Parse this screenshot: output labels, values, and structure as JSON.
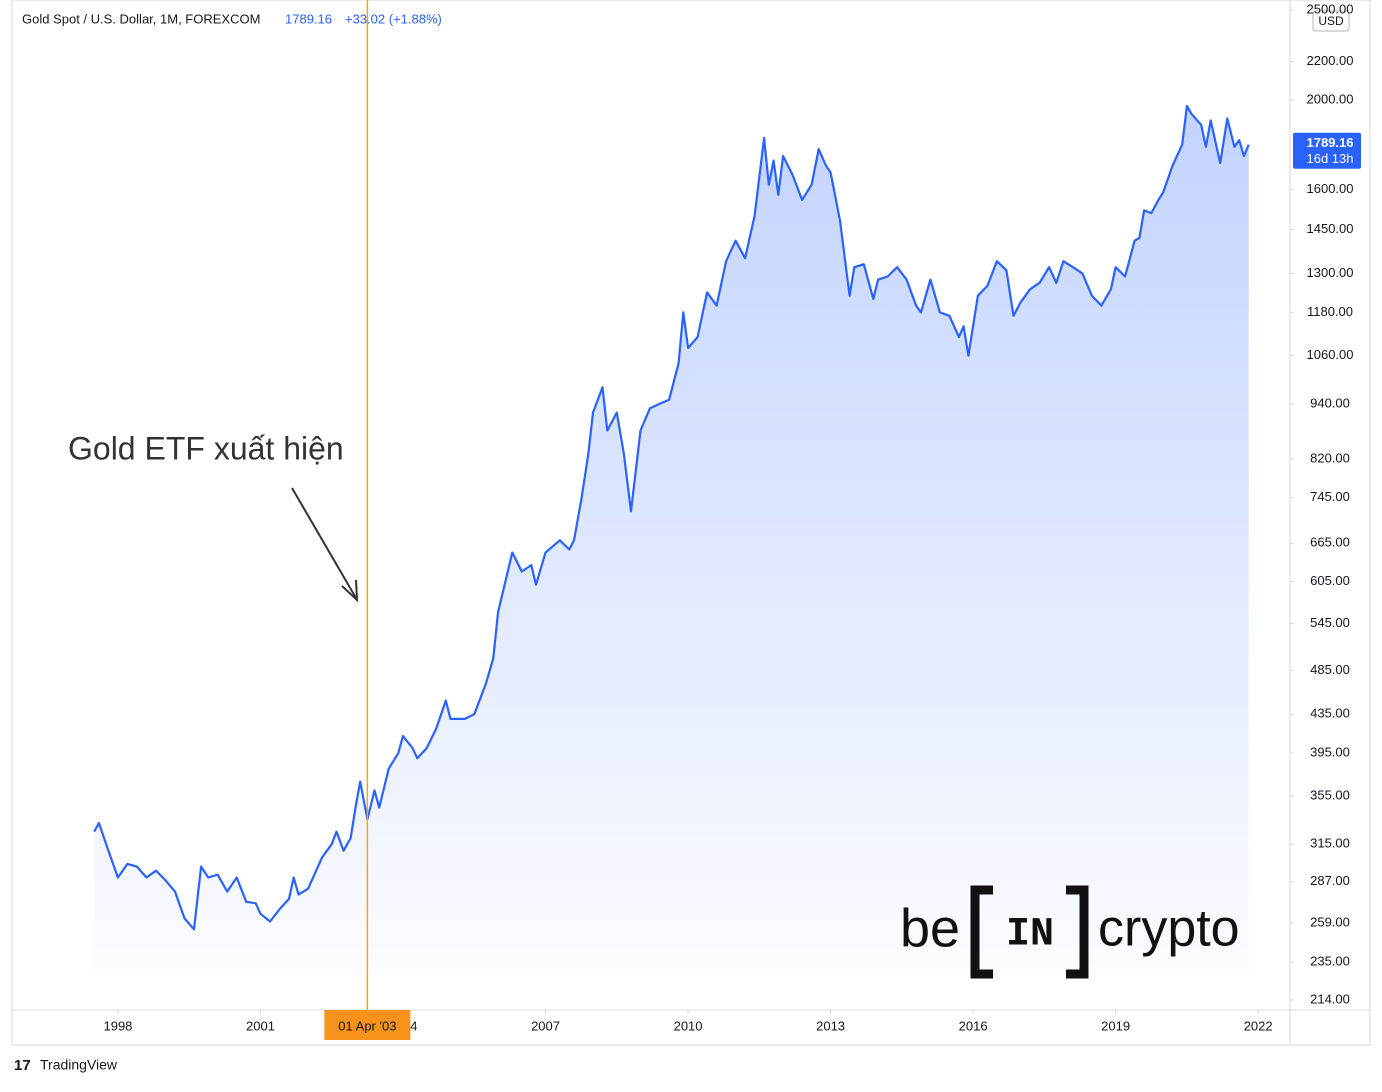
{
  "header": {
    "symbol": "Gold Spot / U.S. Dollar, 1M, FOREXCOM",
    "last": "1789.16",
    "change": "+33.02 (+1.88%)"
  },
  "currency": "USD",
  "footer": "TradingView",
  "logo": {
    "left": "be",
    "middle": "IN",
    "right": "crypto"
  },
  "chart_data": {
    "type": "area",
    "annotation": "Gold ETF xuất hiện",
    "crosshair": {
      "x": 2003.25,
      "label": "01 Apr '03"
    },
    "last_price": {
      "value": 1789.16,
      "label": "1789.16",
      "countdown": "16d 13h"
    },
    "log_scale": true,
    "xlim": [
      1995.77,
      2022.67
    ],
    "xticks": [
      1998,
      2001,
      2004,
      2007,
      2010,
      2013,
      2016,
      2019,
      2022
    ],
    "ylim": [
      208.7,
      2563
    ],
    "yticks": [
      {
        "value": 214,
        "label": "214.00"
      },
      {
        "value": 235,
        "label": "235.00"
      },
      {
        "value": 259,
        "label": "259.00"
      },
      {
        "value": 287,
        "label": "287.00"
      },
      {
        "value": 315,
        "label": "315.00"
      },
      {
        "value": 355,
        "label": "355.00"
      },
      {
        "value": 395,
        "label": "395.00"
      },
      {
        "value": 435,
        "label": "435.00"
      },
      {
        "value": 485,
        "label": "485.00"
      },
      {
        "value": 545,
        "label": "545.00"
      },
      {
        "value": 605,
        "label": "605.00"
      },
      {
        "value": 665,
        "label": "665.00"
      },
      {
        "value": 745,
        "label": "745.00"
      },
      {
        "value": 820,
        "label": "820.00"
      },
      {
        "value": 940,
        "label": "940.00"
      },
      {
        "value": 1060,
        "label": "1060.00"
      },
      {
        "value": 1180,
        "label": "1180.00"
      },
      {
        "value": 1300,
        "label": "1300.00"
      },
      {
        "value": 1450,
        "label": "1450.00"
      },
      {
        "value": 1600,
        "label": "1600.00"
      },
      {
        "value": 2000,
        "label": "2000.00"
      },
      {
        "value": 2200,
        "label": "2200.00"
      },
      {
        "value": 2500,
        "label": "2500.00"
      }
    ],
    "series": [
      {
        "name": "Gold Spot",
        "color": "#2962ff",
        "x": [
          1997.5,
          1997.6,
          1997.8,
          1998.0,
          1998.2,
          1998.4,
          1998.6,
          1998.8,
          1999.0,
          1999.2,
          1999.4,
          1999.6,
          1999.75,
          1999.9,
          2000.1,
          2000.3,
          2000.5,
          2000.7,
          2000.9,
          2001.0,
          2001.2,
          2001.4,
          2001.6,
          2001.7,
          2001.8,
          2002.0,
          2002.3,
          2002.5,
          2002.6,
          2002.75,
          2002.9,
          2003.0,
          2003.1,
          2003.25,
          2003.4,
          2003.5,
          2003.7,
          2003.9,
          2004.0,
          2004.2,
          2004.3,
          2004.5,
          2004.7,
          2004.9,
          2005.0,
          2005.3,
          2005.5,
          2005.75,
          2005.9,
          2006.0,
          2006.3,
          2006.5,
          2006.7,
          2006.8,
          2007.0,
          2007.3,
          2007.5,
          2007.6,
          2007.75,
          2007.9,
          2008.0,
          2008.2,
          2008.3,
          2008.5,
          2008.65,
          2008.8,
          2009.0,
          2009.2,
          2009.4,
          2009.6,
          2009.8,
          2009.9,
          2010.0,
          2010.2,
          2010.4,
          2010.6,
          2010.8,
          2011.0,
          2011.2,
          2011.4,
          2011.6,
          2011.7,
          2011.8,
          2011.9,
          2012.0,
          2012.2,
          2012.4,
          2012.6,
          2012.75,
          2012.9,
          2013.0,
          2013.2,
          2013.4,
          2013.5,
          2013.7,
          2013.9,
          2014.0,
          2014.2,
          2014.4,
          2014.6,
          2014.8,
          2014.9,
          2015.1,
          2015.3,
          2015.5,
          2015.7,
          2015.8,
          2015.9,
          2016.1,
          2016.3,
          2016.5,
          2016.7,
          2016.85,
          2017.0,
          2017.2,
          2017.4,
          2017.6,
          2017.75,
          2017.9,
          2018.1,
          2018.3,
          2018.5,
          2018.7,
          2018.9,
          2019.0,
          2019.2,
          2019.4,
          2019.5,
          2019.6,
          2019.75,
          2019.9,
          2020.0,
          2020.2,
          2020.4,
          2020.5,
          2020.6,
          2020.8,
          2020.9,
          2021.0,
          2021.2,
          2021.35,
          2021.5,
          2021.6,
          2021.7,
          2021.8
        ],
        "values": [
          325,
          332,
          310,
          290,
          300,
          298,
          290,
          295,
          288,
          280,
          262,
          255,
          298,
          290,
          292,
          280,
          290,
          273,
          272,
          265,
          260,
          268,
          275,
          290,
          278,
          282,
          305,
          315,
          325,
          310,
          320,
          345,
          368,
          335,
          360,
          345,
          380,
          395,
          412,
          400,
          390,
          400,
          420,
          450,
          430,
          430,
          435,
          470,
          500,
          560,
          650,
          620,
          630,
          600,
          650,
          670,
          655,
          670,
          740,
          830,
          920,
          980,
          880,
          920,
          830,
          720,
          880,
          930,
          940,
          950,
          1040,
          1180,
          1080,
          1110,
          1240,
          1200,
          1340,
          1410,
          1350,
          1500,
          1820,
          1620,
          1720,
          1580,
          1740,
          1660,
          1560,
          1620,
          1770,
          1700,
          1670,
          1480,
          1230,
          1320,
          1330,
          1220,
          1280,
          1290,
          1320,
          1280,
          1200,
          1180,
          1280,
          1180,
          1170,
          1110,
          1140,
          1060,
          1230,
          1260,
          1340,
          1310,
          1170,
          1210,
          1250,
          1270,
          1320,
          1270,
          1340,
          1320,
          1300,
          1230,
          1200,
          1250,
          1320,
          1290,
          1410,
          1420,
          1520,
          1510,
          1560,
          1590,
          1700,
          1790,
          1970,
          1930,
          1880,
          1780,
          1900,
          1710,
          1910,
          1780,
          1810,
          1740,
          1789.16
        ]
      }
    ]
  }
}
